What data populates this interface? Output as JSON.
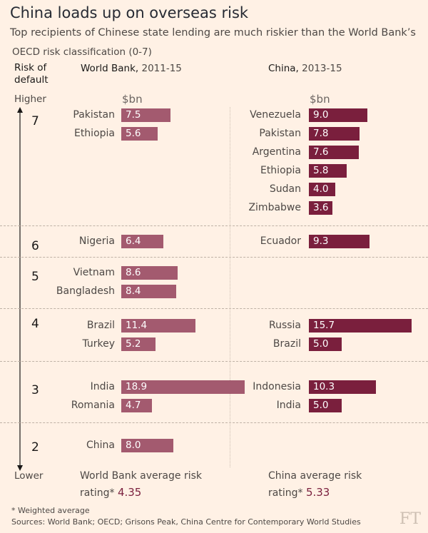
{
  "title": "China loads up on overseas risk",
  "subtitle": "Top recipients of Chinese state lending are much riskier than the World Bank’s",
  "subtitle2": "OECD risk classification (0-7)",
  "risk_label": "Risk of default",
  "higher_label": "Higher",
  "lower_label": "Lower",
  "columns": {
    "wb": {
      "name": "World Bank,",
      "years": "2011-15",
      "unit": "$bn"
    },
    "cn": {
      "name": "China,",
      "years": "2013-15",
      "unit": "$bn"
    }
  },
  "averages": {
    "wb": {
      "text": "World Bank average risk",
      "text2": "rating*",
      "value": "4.35"
    },
    "cn": {
      "text": "China average risk",
      "text2": "rating*",
      "value": "5.33"
    }
  },
  "footnote": "* Weighted average",
  "sources": "Sources: World Bank; OECD; Grisons Peak, China Centre for Contemporary World Studies",
  "logo": "FT",
  "colors": {
    "background": "#fff1e5",
    "world_bank_bar": "#a35a6f",
    "china_bar": "#7a1f3d"
  },
  "chart_data": {
    "type": "bar",
    "orientation": "horizontal",
    "title": "China loads up on overseas risk",
    "xlabel": "$bn",
    "ylabel": "Risk of default (OECD risk classification 0-7)",
    "risk_levels": [
      7,
      6,
      5,
      4,
      3,
      2
    ],
    "series": [
      {
        "name": "World Bank, 2011-15",
        "data": [
          {
            "country": "Pakistan",
            "risk": 7,
            "value": 7.5
          },
          {
            "country": "Ethiopia",
            "risk": 7,
            "value": 5.6
          },
          {
            "country": "Nigeria",
            "risk": 6,
            "value": 6.4
          },
          {
            "country": "Vietnam",
            "risk": 5,
            "value": 8.6
          },
          {
            "country": "Bangladesh",
            "risk": 5,
            "value": 8.4
          },
          {
            "country": "Brazil",
            "risk": 4,
            "value": 11.4
          },
          {
            "country": "Turkey",
            "risk": 4,
            "value": 5.2
          },
          {
            "country": "India",
            "risk": 3,
            "value": 18.9
          },
          {
            "country": "Romania",
            "risk": 3,
            "value": 4.7
          },
          {
            "country": "China",
            "risk": 2,
            "value": 8.0
          }
        ]
      },
      {
        "name": "China, 2013-15",
        "data": [
          {
            "country": "Venezuela",
            "risk": 7,
            "value": 9.0
          },
          {
            "country": "Pakistan",
            "risk": 7,
            "value": 7.8
          },
          {
            "country": "Argentina",
            "risk": 7,
            "value": 7.6
          },
          {
            "country": "Ethiopia",
            "risk": 7,
            "value": 5.8
          },
          {
            "country": "Sudan",
            "risk": 7,
            "value": 4.0
          },
          {
            "country": "Zimbabwe",
            "risk": 7,
            "value": 3.6
          },
          {
            "country": "Ecuador",
            "risk": 6,
            "value": 9.3
          },
          {
            "country": "Russia",
            "risk": 4,
            "value": 15.7
          },
          {
            "country": "Brazil",
            "risk": 4,
            "value": 5.0
          },
          {
            "country": "Indonesia",
            "risk": 3,
            "value": 10.3
          },
          {
            "country": "India",
            "risk": 3,
            "value": 5.0
          }
        ]
      }
    ]
  }
}
